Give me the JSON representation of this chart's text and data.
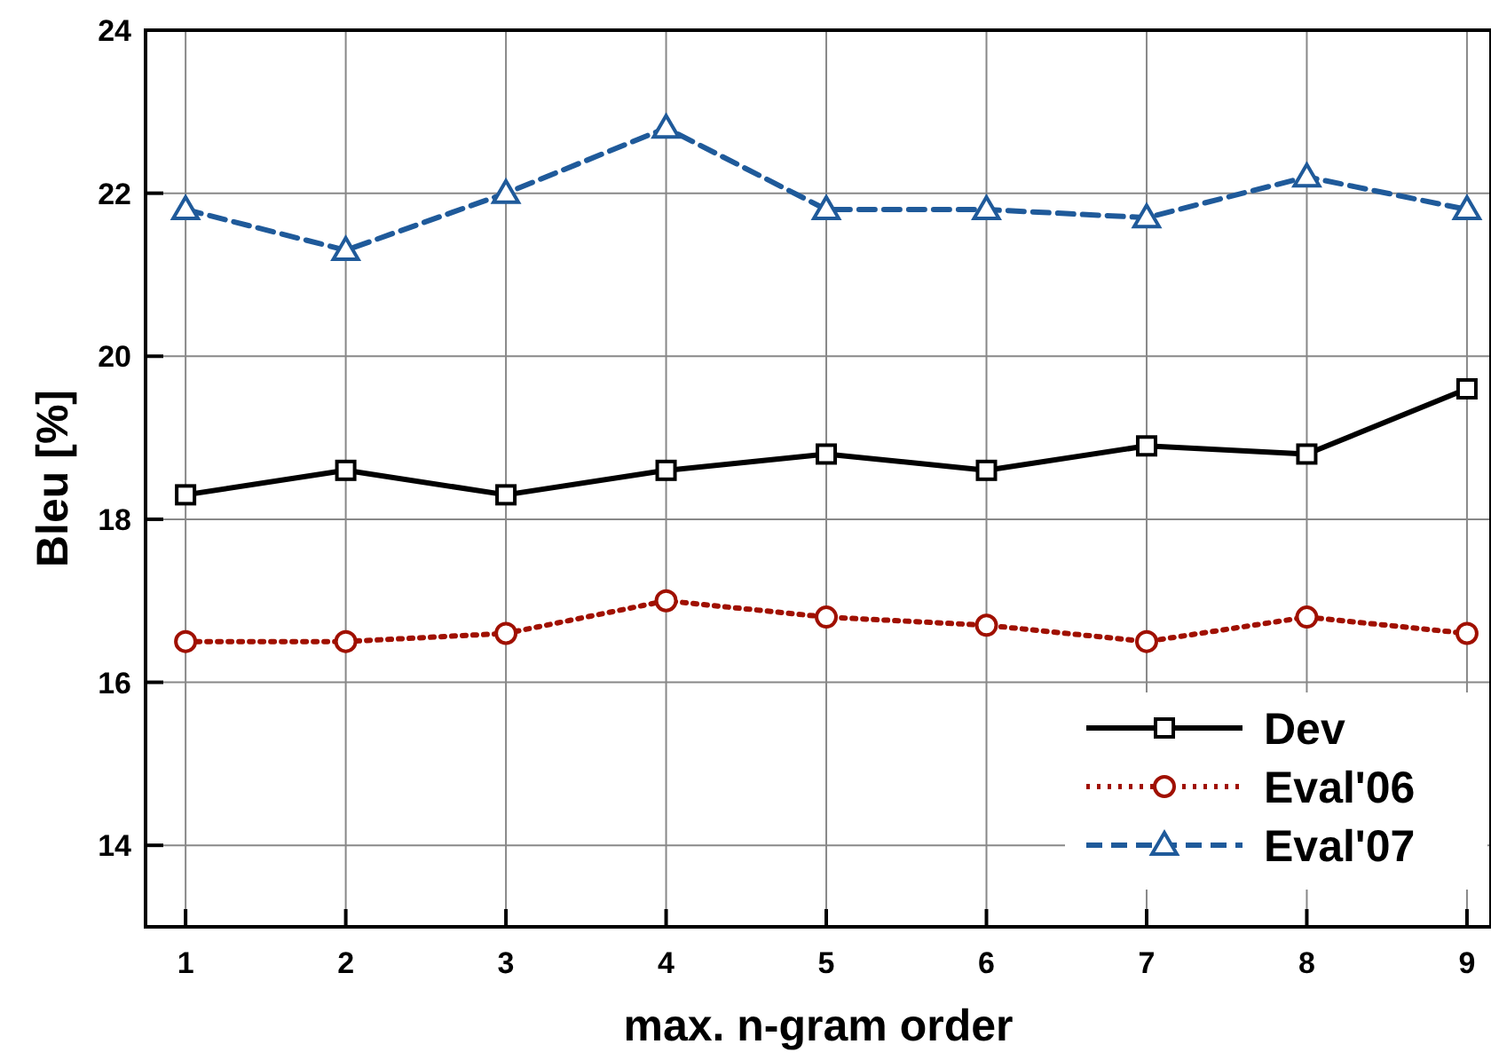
{
  "chart_data": {
    "type": "line",
    "xlabel": "max. n-gram order",
    "ylabel": "Bleu [%]",
    "x": [
      1,
      2,
      3,
      4,
      5,
      6,
      7,
      8,
      9
    ],
    "xlim": [
      0.75,
      9.15
    ],
    "xticks": [
      1,
      2,
      3,
      4,
      5,
      6,
      7,
      8,
      9
    ],
    "ylim": [
      13,
      24
    ],
    "yticks": [
      14,
      16,
      18,
      20,
      22,
      24
    ],
    "grid": true,
    "legend": "bottom right",
    "series": [
      {
        "name": "Dev",
        "color": "#000000",
        "marker": "square",
        "line_style": "solid",
        "values": [
          18.3,
          18.6,
          18.3,
          18.6,
          18.8,
          18.6,
          18.9,
          18.8,
          19.6
        ]
      },
      {
        "name": "Eval'06",
        "color": "#a01000",
        "marker": "circle",
        "line_style": "dotted",
        "values": [
          16.5,
          16.5,
          16.6,
          17.0,
          16.8,
          16.7,
          16.5,
          16.8,
          16.6
        ]
      },
      {
        "name": "Eval'07",
        "color": "#1f5a9a",
        "marker": "triangle",
        "line_style": "dashed",
        "values": [
          21.8,
          21.3,
          22.0,
          22.8,
          21.8,
          21.8,
          21.7,
          22.2,
          21.8
        ]
      }
    ]
  }
}
